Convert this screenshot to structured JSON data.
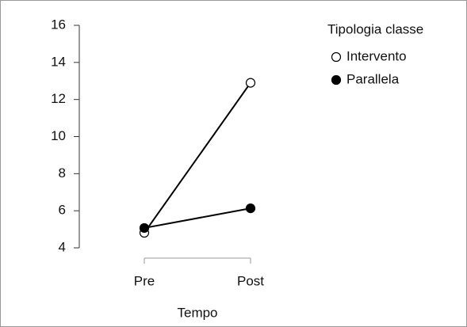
{
  "chart_data": {
    "type": "line",
    "categories": [
      "Pre",
      "Post"
    ],
    "series": [
      {
        "name": "Intervento",
        "color": "#000000",
        "marker_fill": "#ffffff",
        "values": [
          4.81,
          12.9
        ]
      },
      {
        "name": "Parallela",
        "color": "#000000",
        "marker_fill": "#000000",
        "values": [
          5.07,
          6.13
        ]
      }
    ],
    "x_label": "Tempo",
    "legend_title": "Tipologia classe",
    "legend": "top-right",
    "ylim": [
      4,
      16
    ],
    "yticks": [
      4,
      6,
      8,
      10,
      12,
      14,
      16
    ]
  }
}
